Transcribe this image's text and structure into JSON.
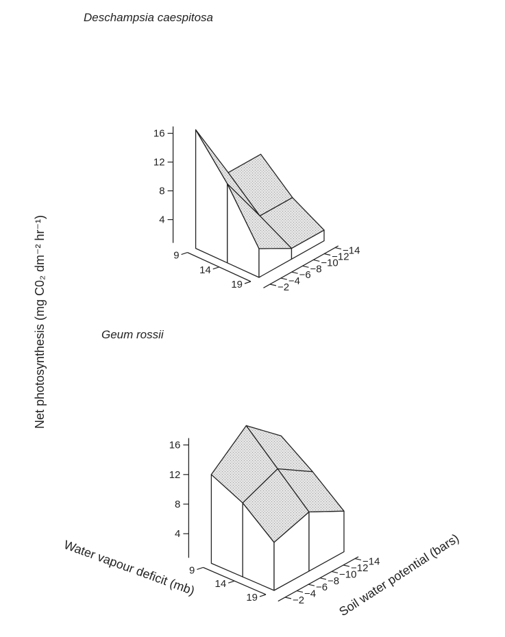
{
  "chart_data": [
    {
      "type": "surface3d",
      "title": "Deschampsia caespitosa",
      "zlabel": "Net photosynthesis (mg C0₂ dm⁻² hr⁻¹)",
      "zticks": [
        "4",
        "8",
        "12",
        "16"
      ],
      "zlim": [
        0,
        16
      ],
      "x_ticks": [
        "9",
        "14",
        "19"
      ],
      "y_ticks": [
        "2",
        "4",
        "6",
        "8",
        "10",
        "12",
        "14"
      ],
      "water_vapour_deficit": [
        9,
        14,
        19
      ],
      "soil_water_potential": [
        2,
        8,
        14
      ],
      "surface": [
        [
          16.5,
          8,
          8
        ],
        [
          11,
          4,
          4
        ],
        [
          4,
          1.5,
          1.5
        ]
      ]
    },
    {
      "type": "surface3d",
      "title": "Geum rossii",
      "xlabel": "Water vapour deficit (mb)",
      "ylabel": "Soil water potential (bars)",
      "zlabel": "Net photosynthesis (mg C0₂ dm⁻² hr⁻¹)",
      "zticks": [
        "4",
        "8",
        "12",
        "16"
      ],
      "zlim": [
        0,
        16
      ],
      "x_ticks": [
        "9",
        "14",
        "19"
      ],
      "y_ticks": [
        "2",
        "4",
        "6",
        "8",
        "10",
        "12",
        "14"
      ],
      "water_vapour_deficit": [
        9,
        14,
        19
      ],
      "soil_water_potential": [
        2,
        8,
        14
      ],
      "surface": [
        [
          12,
          16,
          12
        ],
        [
          10,
          12,
          9
        ],
        [
          6.5,
          8,
          5.5
        ]
      ]
    }
  ]
}
